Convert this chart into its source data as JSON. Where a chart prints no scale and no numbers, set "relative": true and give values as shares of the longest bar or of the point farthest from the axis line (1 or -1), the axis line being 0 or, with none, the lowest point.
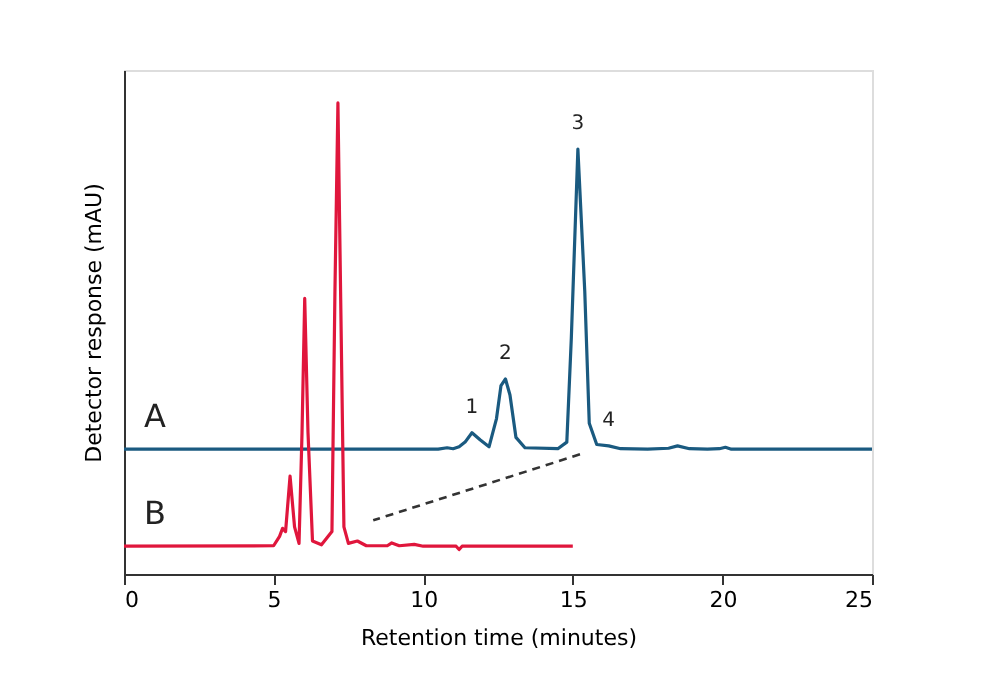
{
  "chart_data": {
    "type": "line",
    "relative": true,
    "xlabel": "Retention time (minutes)",
    "ylabel": "Detector response (mAU)",
    "xlim": [
      0,
      25
    ],
    "xticks": [
      0,
      5,
      10,
      15,
      20,
      25
    ],
    "tick_labels": "x",
    "grid": false,
    "marker": "none",
    "line_style": "solid",
    "series": [
      {
        "color": "#1a5a80",
        "x": [
          0,
          10.5,
          10.8,
          11.0,
          11.2,
          11.4,
          11.63,
          11.9,
          12.2,
          12.45,
          12.6,
          12.75,
          12.9,
          13.1,
          13.4,
          14.5,
          14.8,
          14.95,
          15.17,
          15.4,
          15.55,
          15.8,
          16.2,
          16.6,
          17.5,
          18.2,
          18.5,
          18.9,
          19.5,
          19.9,
          20.1,
          20.3,
          25
        ],
        "values": [
          0.265,
          0.265,
          0.268,
          0.266,
          0.27,
          0.28,
          0.3,
          0.285,
          0.27,
          0.33,
          0.4,
          0.414,
          0.38,
          0.29,
          0.268,
          0.266,
          0.28,
          0.5,
          0.902,
          0.6,
          0.32,
          0.275,
          0.272,
          0.266,
          0.265,
          0.267,
          0.272,
          0.266,
          0.265,
          0.266,
          0.269,
          0.265,
          0.265
        ]
      },
      {
        "color": "#e0163c",
        "x": [
          0,
          5.0,
          5.2,
          5.3,
          5.4,
          5.55,
          5.7,
          5.85,
          5.95,
          6.04,
          6.15,
          6.3,
          6.6,
          6.95,
          7.05,
          7.15,
          7.25,
          7.35,
          7.5,
          7.8,
          8.1,
          8.8,
          8.95,
          9.2,
          9.7,
          10,
          11.1,
          11.2,
          11.3,
          15
        ],
        "values": [
          0.059,
          0.06,
          0.08,
          0.097,
          0.09,
          0.208,
          0.1,
          0.065,
          0.3,
          0.585,
          0.3,
          0.07,
          0.062,
          0.09,
          0.6,
          1.0,
          0.55,
          0.1,
          0.065,
          0.07,
          0.06,
          0.06,
          0.066,
          0.06,
          0.063,
          0.059,
          0.059,
          0.052,
          0.059,
          0.059
        ]
      },
      {
        "color": "#333333",
        "line_style": "dashed",
        "x": [
          15.24,
          8.33
        ],
        "values": [
          0.254,
          0.114
        ]
      }
    ],
    "annotations": [
      {
        "text": "A",
        "x": 0,
        "y": 0.265
      },
      {
        "text": "B",
        "x": 0,
        "y": 0.059
      },
      {
        "text": "1",
        "x": 11.63,
        "y": 0.3
      },
      {
        "text": "2",
        "x": 12.75,
        "y": 0.414
      },
      {
        "text": "3",
        "x": 15.17,
        "y": 0.902
      },
      {
        "text": "4",
        "x": 16.2,
        "y": 0.272
      }
    ]
  }
}
